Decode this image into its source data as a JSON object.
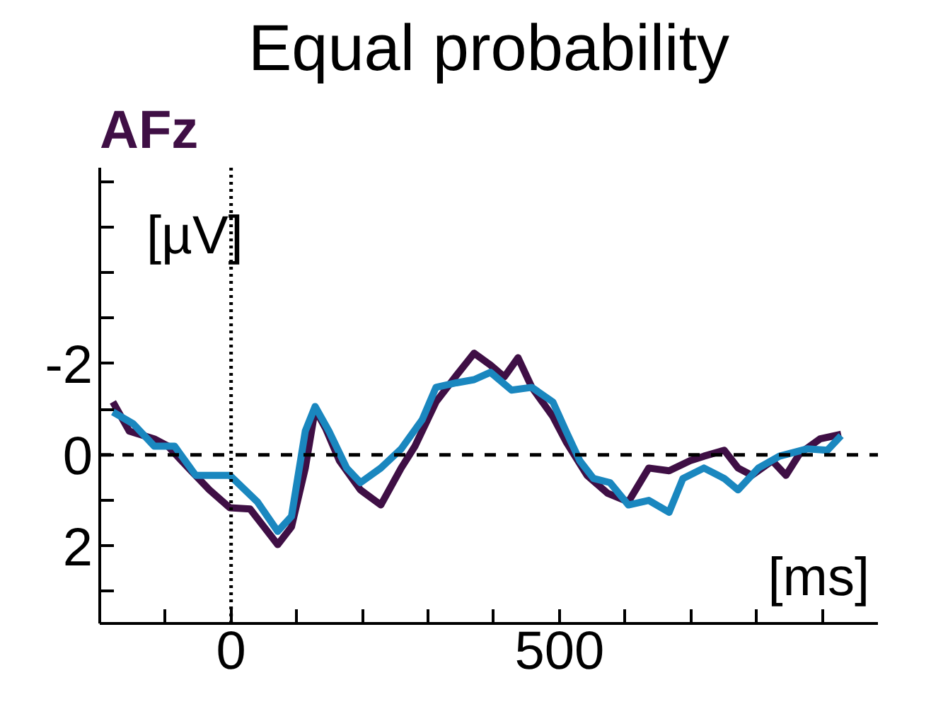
{
  "chart_data": {
    "type": "line",
    "title": "Equal probability",
    "subtitle": "AFz",
    "xlabel": "[ms]",
    "ylabel": "[µV]",
    "xlim": [
      -200,
      985
    ],
    "ylim": [
      3.7,
      -6.3
    ],
    "xticks": [
      {
        "value": -200,
        "label": null
      },
      {
        "value": -100,
        "label": null
      },
      {
        "value": 0,
        "label": "0"
      },
      {
        "value": 100,
        "label": null
      },
      {
        "value": 200,
        "label": null
      },
      {
        "value": 300,
        "label": null
      },
      {
        "value": 400,
        "label": null
      },
      {
        "value": 500,
        "label": "500"
      },
      {
        "value": 600,
        "label": null
      },
      {
        "value": 700,
        "label": null
      },
      {
        "value": 800,
        "label": null
      },
      {
        "value": 900,
        "label": null
      }
    ],
    "yticks": [
      {
        "value": -6,
        "label": null
      },
      {
        "value": -5,
        "label": null
      },
      {
        "value": -4,
        "label": null
      },
      {
        "value": -3,
        "label": null
      },
      -2,
      {
        "value": -1,
        "label": null
      },
      0,
      {
        "value": 1,
        "label": null
      },
      2,
      {
        "value": 3,
        "label": null
      }
    ],
    "marker": "none",
    "line_style": "solid",
    "ref_lines": [
      {
        "axis": "y",
        "value": 0,
        "line_style": "dashed",
        "color": "#000000"
      },
      {
        "axis": "x",
        "value": 0,
        "line_style": "dotted",
        "color": "#000000"
      }
    ],
    "series": [
      {
        "color": "#3f0f45",
        "x": [
          -180,
          -155,
          -117,
          -96,
          -65,
          -33,
          -2,
          29,
          50,
          71,
          92,
          113,
          128,
          144,
          165,
          197,
          228,
          259,
          280,
          312,
          343,
          370,
          395,
          416,
          437,
          458,
          490,
          510,
          542,
          573,
          605,
          636,
          667,
          699,
          720,
          751,
          772,
          793,
          824,
          845,
          866,
          897,
          929
        ],
        "values": [
          -1.16,
          -0.52,
          -0.35,
          -0.19,
          0.29,
          0.77,
          1.16,
          1.19,
          1.58,
          1.97,
          1.58,
          0.29,
          -1.0,
          -0.58,
          0.13,
          0.77,
          1.1,
          0.29,
          -0.19,
          -1.16,
          -1.74,
          -2.23,
          -1.97,
          -1.71,
          -2.13,
          -1.48,
          -0.84,
          -0.29,
          0.45,
          0.84,
          1.03,
          0.29,
          0.35,
          0.13,
          0.03,
          -0.1,
          0.29,
          0.45,
          0.13,
          0.45,
          -0.03,
          -0.35,
          -0.45
        ]
      },
      {
        "color": "#1a87bf",
        "x": [
          -180,
          -149,
          -117,
          -86,
          -54,
          -23,
          -2,
          40,
          71,
          92,
          113,
          128,
          149,
          176,
          197,
          228,
          259,
          291,
          312,
          343,
          370,
          395,
          427,
          458,
          490,
          510,
          531,
          552,
          577,
          605,
          636,
          667,
          688,
          720,
          751,
          772,
          803,
          835,
          877,
          908,
          929
        ],
        "values": [
          -0.94,
          -0.68,
          -0.19,
          -0.19,
          0.45,
          0.45,
          0.45,
          1.03,
          1.68,
          1.35,
          -0.52,
          -1.06,
          -0.52,
          0.29,
          0.61,
          0.29,
          -0.13,
          -0.77,
          -1.48,
          -1.58,
          -1.65,
          -1.81,
          -1.42,
          -1.48,
          -1.16,
          -0.52,
          0.13,
          0.52,
          0.61,
          1.1,
          1.0,
          1.26,
          0.52,
          0.29,
          0.52,
          0.77,
          0.29,
          0.03,
          -0.13,
          -0.1,
          -0.42
        ]
      }
    ]
  }
}
